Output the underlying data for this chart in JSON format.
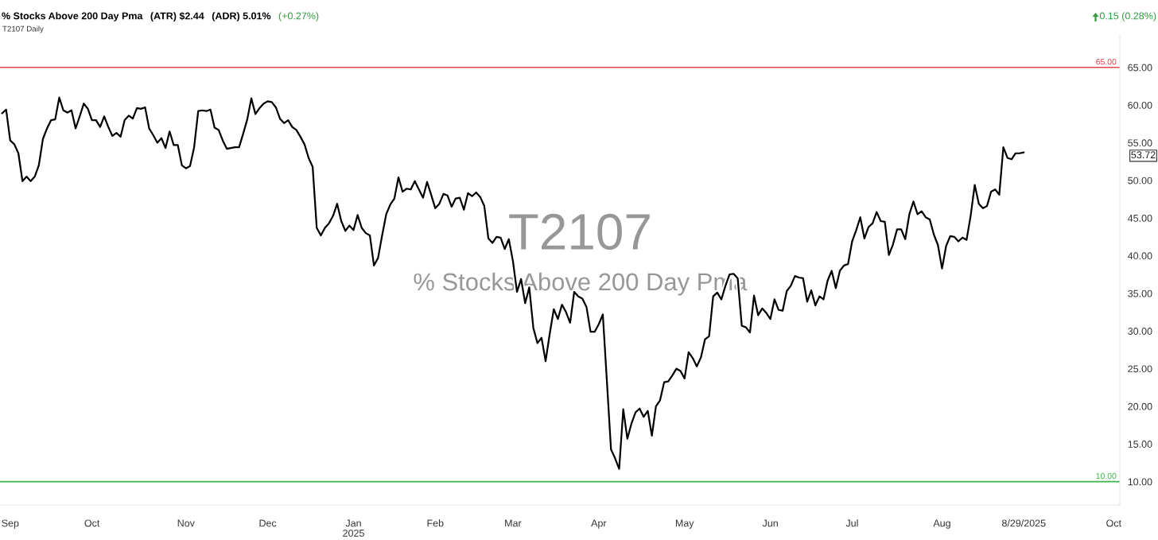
{
  "chart_data": {
    "type": "line",
    "title": "% Stocks Above 200 Day Pma",
    "annotations": [
      "(ATR) $2.44",
      "(ADR) 5.01%",
      "(+0.27%)",
      "0.15 (0.28%)",
      "T2107 Daily",
      "T2107",
      "% Stocks Above 200 Day Pma",
      "53.72"
    ],
    "categories": [
      null,
      null,
      "Sep",
      null,
      null,
      null,
      null,
      null,
      null,
      null,
      null,
      null,
      null,
      null,
      null,
      null,
      null,
      null,
      null,
      null,
      null,
      null,
      "Oct",
      null,
      null,
      null,
      null,
      null,
      null,
      null,
      null,
      null,
      null,
      null,
      null,
      null,
      null,
      null,
      null,
      null,
      null,
      null,
      null,
      null,
      null,
      "Nov",
      null,
      null,
      null,
      null,
      null,
      null,
      null,
      null,
      null,
      null,
      null,
      null,
      null,
      null,
      null,
      null,
      null,
      null,
      null,
      "Dec",
      null,
      null,
      null,
      null,
      null,
      null,
      null,
      null,
      null,
      null,
      null,
      null,
      null,
      null,
      null,
      null,
      null,
      null,
      null,
      null,
      "Jan\n2025",
      null,
      null,
      null,
      null,
      null,
      null,
      null,
      null,
      null,
      null,
      null,
      null,
      null,
      null,
      null,
      null,
      null,
      null,
      null,
      "Feb",
      null,
      null,
      null,
      null,
      null,
      null,
      null,
      null,
      null,
      null,
      null,
      null,
      null,
      null,
      null,
      null,
      null,
      null,
      "Mar",
      null,
      null,
      null,
      null,
      null,
      null,
      null,
      null,
      null,
      null,
      null,
      null,
      null,
      null,
      null,
      null,
      null,
      null,
      null,
      null,
      "Apr",
      null,
      null,
      null,
      null,
      null,
      null,
      null,
      null,
      null,
      null,
      null,
      null,
      null,
      null,
      null,
      null,
      null,
      null,
      null,
      null,
      "May",
      null,
      null,
      null,
      null,
      null,
      null,
      null,
      null,
      null,
      null,
      null,
      null,
      null,
      null,
      null,
      null,
      null,
      null,
      null,
      null,
      "Jun",
      null,
      null,
      null,
      null,
      null,
      null,
      null,
      null,
      null,
      null,
      null,
      null,
      null,
      null,
      null,
      null,
      null,
      null,
      null,
      "Jul",
      null,
      null,
      null,
      null,
      null,
      null,
      null,
      null,
      null,
      null,
      null,
      null,
      null,
      null,
      null,
      null,
      null,
      null,
      null,
      null,
      null,
      "Aug",
      null,
      null,
      null,
      null,
      null,
      null,
      null,
      null,
      null,
      null,
      null,
      null,
      null,
      null,
      null,
      null,
      null,
      null,
      null,
      "8/29/2025",
      null,
      null,
      null,
      null,
      null,
      null,
      null,
      null,
      null,
      null,
      null,
      null,
      null,
      null,
      null,
      null,
      null,
      null,
      null,
      null,
      null,
      "Oct",
      null
    ],
    "series": [
      {
        "color": "#000000",
        "values": [
          58.9,
          59.4,
          55.3,
          54.8,
          53.6,
          49.9,
          50.5,
          49.9,
          50.5,
          52.0,
          55.5,
          56.9,
          58.0,
          58.1,
          61.0,
          59.3,
          59.0,
          59.3,
          56.9,
          58.5,
          60.2,
          59.5,
          58.0,
          58.0,
          57.1,
          58.5,
          57.1,
          55.9,
          56.3,
          55.8,
          58.0,
          58.6,
          58.2,
          59.6,
          59.5,
          59.7,
          56.9,
          56.0,
          55.0,
          55.6,
          54.3,
          56.5,
          54.7,
          54.7,
          52.0,
          51.6,
          51.9,
          54.4,
          59.2,
          59.3,
          59.2,
          59.4,
          57.0,
          56.7,
          55.3,
          54.2,
          54.3,
          54.4,
          54.4,
          56.2,
          58.1,
          60.9,
          58.8,
          59.6,
          60.2,
          60.5,
          60.4,
          59.7,
          58.2,
          57.6,
          58.0,
          57.1,
          56.7,
          55.8,
          54.8,
          53.0,
          51.8,
          43.7,
          42.7,
          43.7,
          44.3,
          45.3,
          46.9,
          44.6,
          43.3,
          44.0,
          43.4,
          45.4,
          43.7,
          43.0,
          42.7,
          38.7,
          39.7,
          42.7,
          45.5,
          46.8,
          47.6,
          50.4,
          48.5,
          48.9,
          48.8,
          49.9,
          48.8,
          47.7,
          49.8,
          48.1,
          46.3,
          46.9,
          48.2,
          48.0,
          46.5,
          47.6,
          47.7,
          46.1,
          48.3,
          47.9,
          48.4,
          47.8,
          46.6,
          42.3,
          41.7,
          42.5,
          42.4,
          40.9,
          42.2,
          39.3,
          35.2,
          36.9,
          33.7,
          35.8,
          30.4,
          28.4,
          29.1,
          26.0,
          29.6,
          32.9,
          31.6,
          33.5,
          32.5,
          31.1,
          35.2,
          34.6,
          34.3,
          33.2,
          29.9,
          29.9,
          30.9,
          32.2,
          23.3,
          14.3,
          13.1,
          11.7,
          19.6,
          15.7,
          17.7,
          19.2,
          19.7,
          18.6,
          19.4,
          16.1,
          20.0,
          20.8,
          23.2,
          23.3,
          24.1,
          25.0,
          24.7,
          23.7,
          27.2,
          26.4,
          25.3,
          26.5,
          28.9,
          29.3,
          34.6,
          35.1,
          34.2,
          36.0,
          37.5,
          37.6,
          37.0,
          30.7,
          30.5,
          29.8,
          34.7,
          32.1,
          33.0,
          32.4,
          31.6,
          34.2,
          32.8,
          32.7,
          35.3,
          36.0,
          37.3,
          37.1,
          37.0,
          33.9,
          35.4,
          33.4,
          34.6,
          34.2,
          36.7,
          38.0,
          35.7,
          38.0,
          38.7,
          38.9,
          41.9,
          43.4,
          45.1,
          42.3,
          43.8,
          44.3,
          45.8,
          44.6,
          44.5,
          40.1,
          41.5,
          43.5,
          43.5,
          42.2,
          45.5,
          47.2,
          45.5,
          45.9,
          45.1,
          44.8,
          42.8,
          41.4,
          38.3,
          41.3,
          42.6,
          42.5,
          41.9,
          42.4,
          42.1,
          45.3,
          49.4,
          46.9,
          46.3,
          46.6,
          48.5,
          48.8,
          48.1,
          54.4,
          53.0,
          52.8,
          53.6,
          53.6,
          53.72,
          null,
          null,
          null,
          null,
          null,
          null,
          null,
          null,
          null,
          null,
          null,
          null,
          null,
          null,
          null,
          null,
          null,
          null,
          null,
          null,
          null,
          null,
          null
        ]
      }
    ],
    "ylim": [
      6.9,
      69.2
    ],
    "yticks": [
      {
        "value": 10,
        "label": "10.00"
      },
      {
        "value": 15,
        "label": "15.00"
      },
      {
        "value": 20,
        "label": "20.00"
      },
      {
        "value": 25,
        "label": "25.00"
      },
      {
        "value": 30,
        "label": "30.00"
      },
      {
        "value": 35,
        "label": "35.00"
      },
      {
        "value": 40,
        "label": "40.00"
      },
      {
        "value": 45,
        "label": "45.00"
      },
      {
        "value": 50,
        "label": "50.00"
      },
      {
        "value": 55,
        "label": "55.00"
      },
      {
        "value": 60,
        "label": "60.00"
      },
      {
        "value": 65,
        "label": "65.00"
      }
    ],
    "ref_lines": [
      {
        "axis": "y",
        "value": 65,
        "label": "65.00",
        "color": "#e0474c"
      },
      {
        "axis": "y",
        "value": 10,
        "label": "10.00",
        "color": "#3cb44b"
      }
    ]
  }
}
